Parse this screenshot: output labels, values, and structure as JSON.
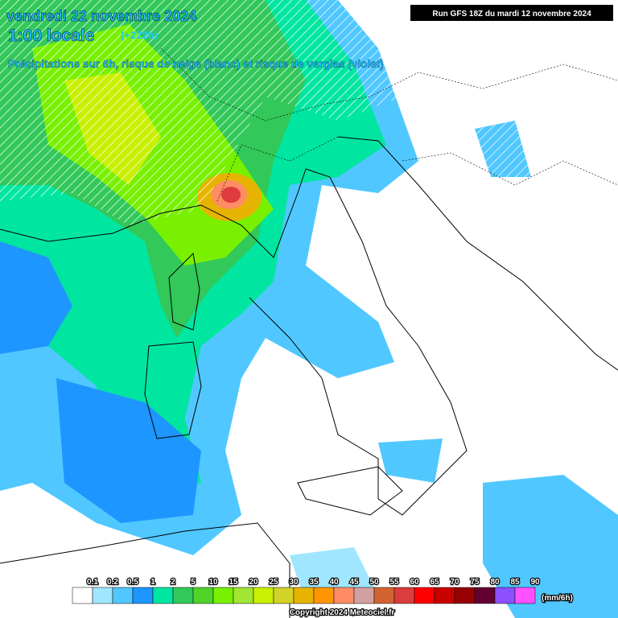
{
  "header": {
    "date": "vendredi 22 novembre 2024",
    "time": "1:00 locale",
    "lead": "(+222h)",
    "description": "Précipitations sur 6h, risque de neige (blanc) et risque de verglas (violet)",
    "run": "Run GFS 18Z du mardi 12 novembre 2024"
  },
  "legend": {
    "labels": [
      "0.1",
      "0.2",
      "0.5",
      "1",
      "2",
      "5",
      "10",
      "15",
      "20",
      "25",
      "30",
      "35",
      "40",
      "45",
      "50",
      "55",
      "60",
      "65",
      "70",
      "75",
      "80",
      "85",
      "90"
    ],
    "colors": [
      "#ffffff",
      "#a0e6ff",
      "#50c8ff",
      "#1e96ff",
      "#00e6a0",
      "#32c85a",
      "#50d228",
      "#78f000",
      "#a0e632",
      "#c8f000",
      "#d2d228",
      "#e6b400",
      "#ff9600",
      "#ff8c64",
      "#d2a0a0",
      "#d26432",
      "#dc3c3c",
      "#ff0000",
      "#c80000",
      "#960000",
      "#640032",
      "#8c50ff",
      "#ff50ff"
    ],
    "unit": "(mm/6h)"
  },
  "footer": {
    "copyright": "Copyright 2024 Meteociel.fr"
  }
}
